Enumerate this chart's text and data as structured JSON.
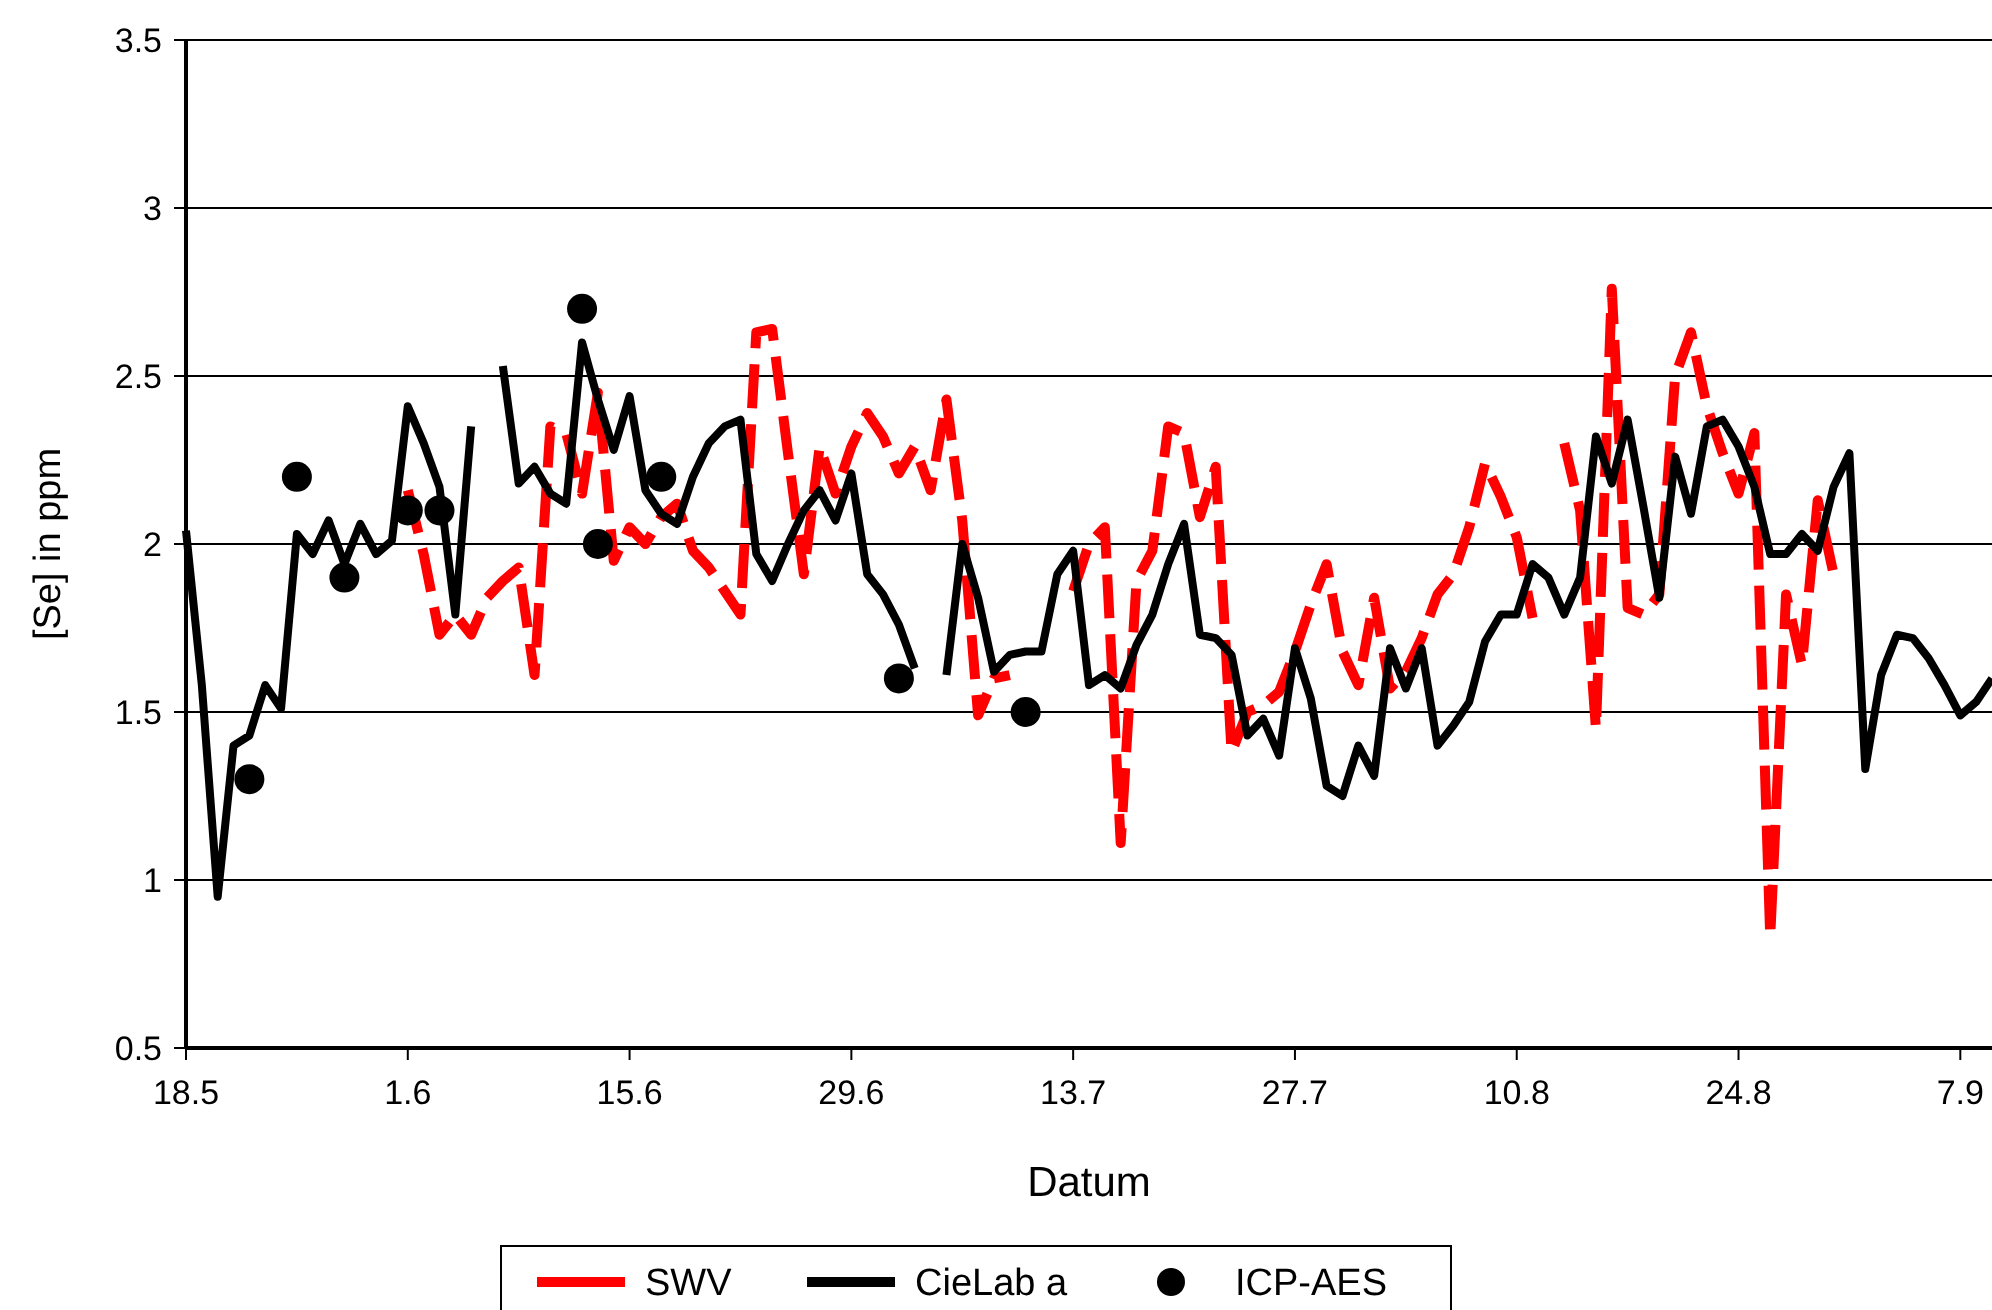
{
  "chart_data": {
    "type": "line",
    "xlabel": "Datum",
    "ylabel": "[Se] in ppm",
    "x": [
      "--05-18",
      "--05-19",
      "--05-20",
      "--05-21",
      "--05-22",
      "--05-23",
      "--05-24",
      "--05-25",
      "--05-26",
      "--05-27",
      "--05-28",
      "--05-29",
      "--05-30",
      "--05-31",
      "--06-01",
      "--06-02",
      "--06-03",
      "--06-04",
      "--06-05",
      "--06-06",
      "--06-07",
      "--06-08",
      "--06-09",
      "--06-10",
      "--06-11",
      "--06-12",
      "--06-13",
      "--06-14",
      "--06-15",
      "--06-16",
      "--06-17",
      "--06-18",
      "--06-19",
      "--06-20",
      "--06-21",
      "--06-22",
      "--06-23",
      "--06-24",
      "--06-25",
      "--06-26",
      "--06-27",
      "--06-28",
      "--06-29",
      "--06-30",
      "--07-01",
      "--07-02",
      "--07-03",
      "--07-04",
      "--07-05",
      "--07-06",
      "--07-07",
      "--07-08",
      "--07-09",
      "--07-10",
      "--07-11",
      "--07-12",
      "--07-13",
      "--07-14",
      "--07-15",
      "--07-16",
      "--07-17",
      "--07-18",
      "--07-19",
      "--07-20",
      "--07-21",
      "--07-22",
      "--07-23",
      "--07-24",
      "--07-25",
      "--07-26",
      "--07-27",
      "--07-28",
      "--07-29",
      "--07-30",
      "--07-31",
      "--08-01",
      "--08-02",
      "--08-03",
      "--08-04",
      "--08-05",
      "--08-06",
      "--08-07",
      "--08-08",
      "--08-09",
      "--08-10",
      "--08-11",
      "--08-12",
      "--08-13",
      "--08-14",
      "--08-15",
      "--08-16",
      "--08-17",
      "--08-18",
      "--08-19",
      "--08-20",
      "--08-21",
      "--08-22",
      "--08-23",
      "--08-24",
      "--08-25",
      "--08-26",
      "--08-27",
      "--08-28",
      "--08-29",
      "--08-30",
      "--08-31",
      "--09-01",
      "--09-02",
      "--09-03",
      "--09-04",
      "--09-05",
      "--09-06",
      "--09-07",
      "--09-08",
      "--09-09"
    ],
    "series": [
      {
        "name": "SWV",
        "color": "#ff0000",
        "line_style": "dashed",
        "values": [
          null,
          null,
          null,
          null,
          null,
          null,
          null,
          null,
          null,
          null,
          null,
          null,
          null,
          null,
          2.16,
          1.97,
          1.73,
          1.79,
          1.73,
          1.84,
          1.89,
          1.93,
          1.61,
          2.35,
          2.33,
          2.15,
          2.45,
          1.95,
          2.05,
          2.0,
          2.08,
          2.12,
          1.98,
          1.93,
          1.86,
          1.79,
          2.63,
          2.64,
          2.27,
          1.91,
          2.29,
          2.15,
          2.29,
          2.39,
          2.32,
          2.21,
          2.29,
          2.16,
          2.43,
          2.07,
          1.49,
          1.6,
          1.61,
          null,
          null,
          null,
          1.86,
          2.0,
          2.05,
          1.11,
          1.89,
          1.98,
          2.35,
          2.33,
          2.08,
          2.23,
          1.38,
          1.5,
          1.52,
          1.56,
          1.68,
          1.82,
          1.94,
          1.68,
          1.58,
          1.84,
          1.57,
          1.62,
          1.72,
          1.85,
          1.91,
          2.05,
          2.24,
          2.14,
          2.02,
          1.78,
          null,
          2.3,
          2.1,
          1.45,
          2.76,
          1.81,
          1.79,
          1.85,
          2.5,
          2.63,
          2.41,
          2.27,
          2.15,
          2.33,
          0.83,
          1.85,
          1.64,
          2.13,
          1.91,
          null,
          null,
          null,
          null,
          null,
          null,
          null,
          null,
          null,
          null
        ]
      },
      {
        "name": "CieLab a",
        "color": "#000000",
        "line_style": "solid",
        "values": [
          2.04,
          1.58,
          0.95,
          1.4,
          1.43,
          1.58,
          1.51,
          2.03,
          1.97,
          2.07,
          1.94,
          2.06,
          1.97,
          2.01,
          2.41,
          2.3,
          2.17,
          1.79,
          2.35,
          null,
          2.53,
          2.18,
          2.23,
          2.15,
          2.12,
          2.6,
          2.43,
          2.28,
          2.44,
          2.16,
          2.09,
          2.06,
          2.2,
          2.3,
          2.35,
          2.37,
          1.97,
          1.89,
          2.0,
          2.1,
          2.16,
          2.07,
          2.21,
          1.91,
          1.85,
          1.76,
          1.63,
          null,
          1.61,
          2.0,
          1.84,
          1.62,
          1.67,
          1.68,
          1.68,
          1.91,
          1.98,
          1.58,
          1.61,
          1.57,
          1.7,
          1.79,
          1.94,
          2.06,
          1.73,
          1.72,
          1.67,
          1.43,
          1.48,
          1.37,
          1.69,
          1.54,
          1.28,
          1.25,
          1.4,
          1.31,
          1.69,
          1.57,
          1.69,
          1.4,
          1.46,
          1.53,
          1.71,
          1.79,
          1.79,
          1.94,
          1.9,
          1.79,
          1.9,
          2.32,
          2.18,
          2.37,
          2.11,
          1.84,
          2.26,
          2.09,
          2.35,
          2.37,
          2.29,
          2.17,
          1.97,
          1.97,
          2.03,
          1.98,
          2.17,
          2.27,
          1.33,
          1.61,
          1.73,
          1.72,
          1.66,
          1.58,
          1.49,
          1.53,
          1.6
        ]
      },
      {
        "name": "ICP-AES",
        "type": "scatter",
        "marker": "circle",
        "color": "#000000",
        "x": [
          "--05-22",
          "--05-25",
          "--05-28",
          "--06-01",
          "--06-03",
          "--06-12",
          "--06-13",
          "--06-17",
          "--07-02",
          "--07-10"
        ],
        "values": [
          1.3,
          2.2,
          1.9,
          2.1,
          2.1,
          2.7,
          2.0,
          2.2,
          1.6,
          1.5
        ]
      }
    ],
    "xlim": [
      "--05-18",
      "--09-09"
    ],
    "xticks": [
      {
        "value": "--05-18",
        "label": "18.5"
      },
      {
        "value": "--06-01",
        "label": "1.6"
      },
      {
        "value": "--06-15",
        "label": "15.6"
      },
      {
        "value": "--06-29",
        "label": "29.6"
      },
      {
        "value": "--07-13",
        "label": "13.7"
      },
      {
        "value": "--07-27",
        "label": "27.7"
      },
      {
        "value": "--08-10",
        "label": "10.8"
      },
      {
        "value": "--08-24",
        "label": "24.8"
      },
      {
        "value": "--09-07",
        "label": "7.9"
      }
    ],
    "ylim": [
      0.5,
      3.5
    ],
    "yticks": [
      0.5,
      1,
      1.5,
      2,
      2.5,
      3,
      3.5
    ],
    "grid": "y",
    "legend": "bottom"
  }
}
